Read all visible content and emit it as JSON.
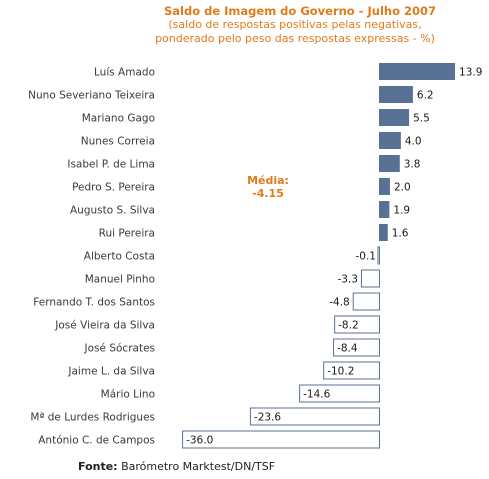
{
  "chart_data": {
    "type": "bar",
    "orientation": "horizontal",
    "title": "Saldo de Imagem do Governo - Julho 2007",
    "subtitle_lines": [
      "(saldo de respostas positivas pelas negativas,",
      "ponderado pelo peso das respostas expressas - %)"
    ],
    "categories": [
      "Luís Amado",
      "Nuno Severiano Teixeira",
      "Mariano Gago",
      "Nunes Correia",
      "Isabel P. de Lima",
      "Pedro S. Pereira",
      "Augusto S. Silva",
      "Rui Pereira",
      "Alberto Costa",
      "Manuel Pinho",
      "Fernando T. dos Santos",
      "José Vieira da Silva",
      "José Sócrates",
      "Jaime L. da Silva",
      "Mário Lino",
      "Mª de Lurdes Rodrigues",
      "António C. de Campos"
    ],
    "values": [
      13.9,
      6.2,
      5.5,
      4.0,
      3.8,
      2.0,
      1.9,
      1.6,
      -0.1,
      -3.3,
      -4.8,
      -8.2,
      -8.4,
      -10.2,
      -14.6,
      -23.6,
      -36.0
    ],
    "value_labels": [
      "13.9",
      "6.2",
      "5.5",
      "4.0",
      "3.8",
      "2.0",
      "1.9",
      "1.6",
      "-0.1",
      "-3.3",
      "-4.8",
      "-8.2",
      "-8.4",
      "-10.2",
      "-14.6",
      "-23.6",
      "-36.0"
    ],
    "xlim": [
      -36.0,
      13.9
    ],
    "grid": false,
    "positive_color": "#5a7196",
    "negative_fill": "#ffffff",
    "negative_border": "#5a7196",
    "accent_color": "#e07b1a",
    "mean_label": "Média:",
    "mean_value": "-4.15"
  },
  "source": {
    "label": "Fonte:",
    "text": "Barómetro Marktest/DN/TSF"
  }
}
